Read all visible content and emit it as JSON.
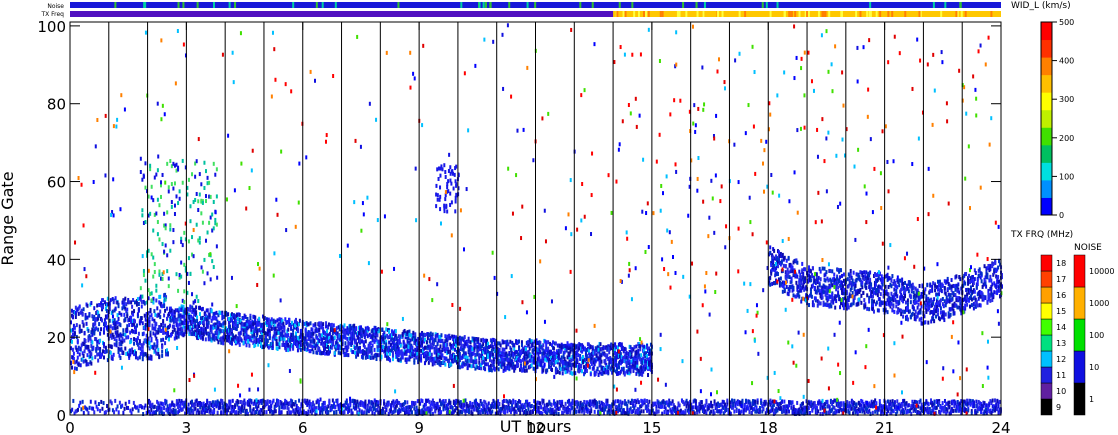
{
  "chart_data": {
    "type": "heatmap",
    "xlabel": "UT hours",
    "ylabel": "Range Gate",
    "xlim": [
      0,
      24
    ],
    "ylim": [
      0,
      101
    ],
    "x_ticks": [
      0,
      3,
      6,
      9,
      12,
      15,
      18,
      21,
      24
    ],
    "y_ticks": [
      0,
      20,
      40,
      60,
      80,
      100
    ],
    "grid": "vertical lines at scan boundaries",
    "scan_boundaries_hours": [
      1.0,
      2.0,
      3.0,
      4.0,
      5.0,
      6.0,
      7.0,
      8.0,
      9.0,
      10.0,
      11.0,
      12.0,
      13.0,
      14.0,
      15.0,
      16.0,
      17.0,
      18.0,
      19.0,
      20.0,
      21.0,
      22.0,
      23.0
    ],
    "top_strips": {
      "noise_label": "Noise",
      "txfreq_label": "TX Freq",
      "txfreq_switch_hour": 14.0
    },
    "colorbars": {
      "width": {
        "title": "WID_L (km/s)",
        "ticks": [
          "0",
          "100",
          "200",
          "300",
          "400",
          "500"
        ],
        "colors": [
          "#0000ff",
          "#0090ff",
          "#00e0e0",
          "#00c060",
          "#40e000",
          "#c0f000",
          "#ffff00",
          "#ffc000",
          "#ff8000",
          "#ff3000",
          "#ff0000"
        ]
      },
      "txfreq": {
        "title": "TX FRQ (MHz)",
        "ticks": [
          "9",
          "10",
          "11",
          "12",
          "13",
          "14",
          "15",
          "16",
          "17",
          "18"
        ],
        "colors": [
          "#000000",
          "#6020a0",
          "#2020e0",
          "#00c0ff",
          "#00e080",
          "#40ff00",
          "#ffff00",
          "#ffa000",
          "#ff4000",
          "#ff0000"
        ]
      },
      "noise": {
        "title": "NOISE",
        "ticks": [
          "1",
          "10",
          "100",
          "1000",
          "10000"
        ],
        "colors": [
          "#000000",
          "#1010e0",
          "#00e000",
          "#ffb000",
          "#ff0000"
        ]
      }
    },
    "echo_bands": [
      {
        "name": "near-range ground band",
        "x": [
          0.0,
          24.0
        ],
        "gates": [
          0,
          4
        ]
      },
      {
        "name": "main ionospheric band",
        "x": [
          0.0,
          15.0
        ],
        "gate_center": [
          19,
          22,
          22,
          24,
          22,
          21,
          20,
          19,
          18,
          17,
          16,
          15,
          15,
          14,
          14,
          14
        ]
      },
      {
        "name": "evening band",
        "x": [
          18.0,
          24.0
        ],
        "gate_center": [
          38,
          33,
          32,
          31,
          28,
          31,
          35
        ]
      }
    ]
  }
}
